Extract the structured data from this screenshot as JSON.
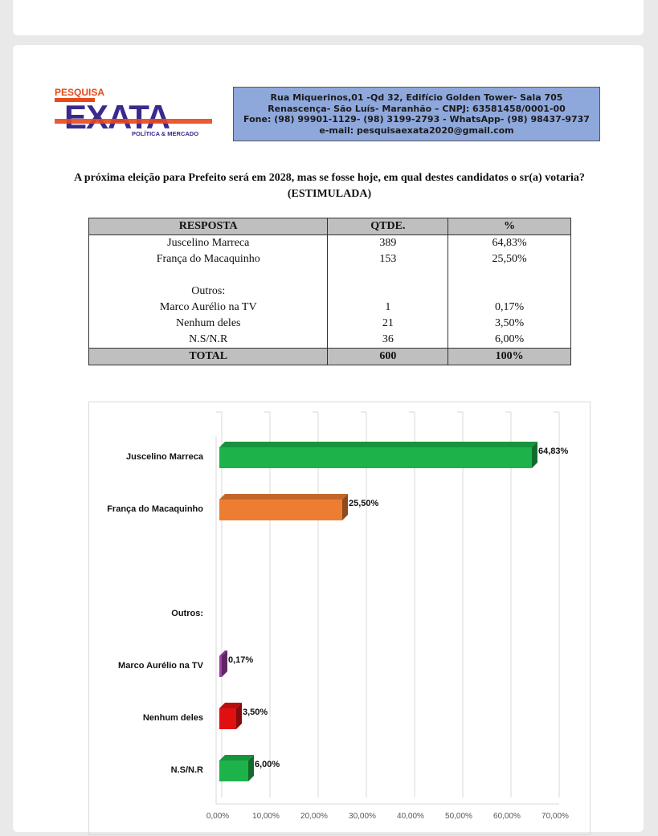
{
  "header": {
    "logo": {
      "top": "PESQUISA",
      "main": "EXATA",
      "sub": "POLÍTICA & MERCADO"
    },
    "address_lines": [
      "Rua Miquerinos,01 -Qd 32,  Edifício Golden Tower- Sala 705",
      "Renascença- São Luís- Maranhão – CNPJ: 63581458/0001-00",
      "Fone: (98) 99901-1129- (98) 3199-2793 - WhatsApp- (98) 98437-9737",
      "e-mail: pesquisaexata2020@gmail.com"
    ]
  },
  "question": {
    "line1": "A próxima eleição para Prefeito será em 2028, mas se fosse hoje, em qual destes candidatos o sr(a) votaria?",
    "line2": "(ESTIMULADA)"
  },
  "table": {
    "headers": [
      "RESPOSTA",
      "QTDE.",
      "%"
    ],
    "rows": [
      [
        "Juscelino Marreca",
        "389",
        "64,83%"
      ],
      [
        "França do Macaquinho",
        "153",
        "25,50%"
      ],
      [
        "",
        "",
        ""
      ],
      [
        "Outros:",
        "",
        ""
      ],
      [
        "Marco Aurélio na TV",
        "1",
        "0,17%"
      ],
      [
        "Nenhum deles",
        "21",
        "3,50%"
      ],
      [
        "N.S/N.R",
        "36",
        "6,00%"
      ]
    ],
    "total": [
      "TOTAL",
      "600",
      "100%"
    ]
  },
  "colors": {
    "green": "#1db34a",
    "orange": "#ed7d31",
    "purple": "#9e3fa8",
    "red": "#e01010",
    "logo_purple": "#3b2a8c",
    "logo_orange": "#e8481a"
  },
  "chart_data": {
    "type": "bar",
    "orientation": "horizontal",
    "categories": [
      "Juscelino Marreca",
      "França do Macaquinho",
      "",
      "Outros:",
      "Marco Aurélio na TV",
      "Nenhum deles",
      "N.S/N.R"
    ],
    "values": [
      64.83,
      25.5,
      null,
      null,
      0.17,
      3.5,
      6.0
    ],
    "value_labels": [
      "64,83%",
      "25,50%",
      "",
      "",
      "0,17%",
      "3,50%",
      "6,00%"
    ],
    "bar_colors": [
      "#1db34a",
      "#ed7d31",
      "",
      "",
      "#9e3fa8",
      "#e01010",
      "#1db34a"
    ],
    "xlim": [
      0,
      70
    ],
    "x_ticks": [
      "0,00%",
      "10,00%",
      "20,00%",
      "30,00%",
      "40,00%",
      "50,00%",
      "60,00%",
      "70,00%"
    ],
    "grid": true,
    "title": "",
    "xlabel": "",
    "ylabel": ""
  }
}
